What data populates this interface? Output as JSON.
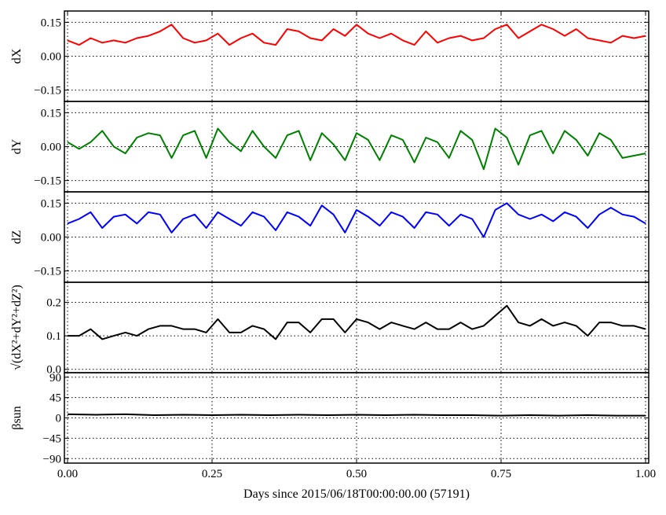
{
  "chart_data": {
    "type": "line",
    "x_axis": {
      "label": "Days since 2015/06/18T00:00:00.00 (57191)",
      "range": [
        0.0,
        1.0
      ],
      "ticks": [
        0.0,
        0.25,
        0.5,
        0.75,
        1.0
      ],
      "tick_labels": [
        "0.00",
        "0.25",
        "0.50",
        "0.75",
        "1.00"
      ]
    },
    "grid": true,
    "panels": [
      {
        "id": "dx",
        "ylabel": "dX",
        "color": "#ff0000",
        "ylim": [
          -0.2,
          0.2
        ],
        "yticks": [
          -0.15,
          0.0,
          0.15
        ],
        "ytick_labels": [
          "−0.15",
          "0.00",
          "0.15"
        ],
        "x": [
          0.0,
          0.02,
          0.04,
          0.06,
          0.08,
          0.1,
          0.12,
          0.14,
          0.16,
          0.18,
          0.2,
          0.22,
          0.24,
          0.26,
          0.28,
          0.3,
          0.32,
          0.34,
          0.36,
          0.38,
          0.4,
          0.42,
          0.44,
          0.46,
          0.48,
          0.5,
          0.52,
          0.54,
          0.56,
          0.58,
          0.6,
          0.62,
          0.64,
          0.66,
          0.68,
          0.7,
          0.72,
          0.74,
          0.76,
          0.78,
          0.8,
          0.82,
          0.84,
          0.86,
          0.88,
          0.9,
          0.92,
          0.94,
          0.96,
          0.98,
          1.0
        ],
        "y": [
          0.07,
          0.05,
          0.08,
          0.06,
          0.07,
          0.06,
          0.08,
          0.09,
          0.11,
          0.14,
          0.08,
          0.06,
          0.07,
          0.1,
          0.05,
          0.08,
          0.1,
          0.06,
          0.05,
          0.12,
          0.11,
          0.08,
          0.07,
          0.12,
          0.09,
          0.14,
          0.1,
          0.08,
          0.1,
          0.07,
          0.05,
          0.11,
          0.06,
          0.08,
          0.09,
          0.07,
          0.08,
          0.12,
          0.14,
          0.08,
          0.11,
          0.14,
          0.12,
          0.09,
          0.12,
          0.08,
          0.07,
          0.06,
          0.09,
          0.08,
          0.09
        ]
      },
      {
        "id": "dy",
        "ylabel": "dY",
        "color": "#008000",
        "ylim": [
          -0.2,
          0.2
        ],
        "yticks": [
          -0.15,
          0.0,
          0.15
        ],
        "ytick_labels": [
          "−0.15",
          "0.00",
          "0.15"
        ],
        "x": [
          0.0,
          0.02,
          0.04,
          0.06,
          0.08,
          0.1,
          0.12,
          0.14,
          0.16,
          0.18,
          0.2,
          0.22,
          0.24,
          0.26,
          0.28,
          0.3,
          0.32,
          0.34,
          0.36,
          0.38,
          0.4,
          0.42,
          0.44,
          0.46,
          0.48,
          0.5,
          0.52,
          0.54,
          0.56,
          0.58,
          0.6,
          0.62,
          0.64,
          0.66,
          0.68,
          0.7,
          0.72,
          0.74,
          0.76,
          0.78,
          0.8,
          0.82,
          0.84,
          0.86,
          0.88,
          0.9,
          0.92,
          0.94,
          0.96,
          0.98,
          1.0
        ],
        "y": [
          0.02,
          -0.01,
          0.02,
          0.07,
          0.0,
          -0.03,
          0.04,
          0.06,
          0.05,
          -0.05,
          0.05,
          0.07,
          -0.05,
          0.08,
          0.02,
          -0.02,
          0.07,
          0.0,
          -0.05,
          0.05,
          0.07,
          -0.06,
          0.06,
          0.01,
          -0.06,
          0.06,
          0.03,
          -0.06,
          0.05,
          0.03,
          -0.07,
          0.04,
          0.02,
          -0.05,
          0.07,
          0.03,
          -0.1,
          0.08,
          0.04,
          -0.08,
          0.05,
          0.07,
          -0.03,
          0.07,
          0.03,
          -0.04,
          0.06,
          0.03,
          -0.05,
          -0.04,
          -0.03
        ]
      },
      {
        "id": "dz",
        "ylabel": "dZ",
        "color": "#0000ff",
        "ylim": [
          -0.2,
          0.2
        ],
        "yticks": [
          -0.15,
          0.0,
          0.15
        ],
        "ytick_labels": [
          "−0.15",
          "0.00",
          "0.15"
        ],
        "x": [
          0.0,
          0.02,
          0.04,
          0.06,
          0.08,
          0.1,
          0.12,
          0.14,
          0.16,
          0.18,
          0.2,
          0.22,
          0.24,
          0.26,
          0.28,
          0.3,
          0.32,
          0.34,
          0.36,
          0.38,
          0.4,
          0.42,
          0.44,
          0.46,
          0.48,
          0.5,
          0.52,
          0.54,
          0.56,
          0.58,
          0.6,
          0.62,
          0.64,
          0.66,
          0.68,
          0.7,
          0.72,
          0.74,
          0.76,
          0.78,
          0.8,
          0.82,
          0.84,
          0.86,
          0.88,
          0.9,
          0.92,
          0.94,
          0.96,
          0.98,
          1.0
        ],
        "y": [
          0.06,
          0.08,
          0.11,
          0.04,
          0.09,
          0.1,
          0.06,
          0.11,
          0.1,
          0.02,
          0.08,
          0.1,
          0.04,
          0.11,
          0.08,
          0.05,
          0.11,
          0.09,
          0.03,
          0.11,
          0.09,
          0.05,
          0.14,
          0.1,
          0.02,
          0.12,
          0.09,
          0.05,
          0.11,
          0.09,
          0.04,
          0.11,
          0.1,
          0.05,
          0.1,
          0.08,
          0.0,
          0.12,
          0.15,
          0.1,
          0.08,
          0.1,
          0.07,
          0.11,
          0.09,
          0.04,
          0.1,
          0.13,
          0.1,
          0.09,
          0.06
        ]
      },
      {
        "id": "magnitude",
        "ylabel": "√(dX²+dY²+dZ²)",
        "color": "#000000",
        "ylim": [
          -0.01,
          0.26
        ],
        "yticks": [
          0.0,
          0.1,
          0.2
        ],
        "ytick_labels": [
          "0.0",
          "0.1",
          "0.2"
        ],
        "x": [
          0.0,
          0.02,
          0.04,
          0.06,
          0.08,
          0.1,
          0.12,
          0.14,
          0.16,
          0.18,
          0.2,
          0.22,
          0.24,
          0.26,
          0.28,
          0.3,
          0.32,
          0.34,
          0.36,
          0.38,
          0.4,
          0.42,
          0.44,
          0.46,
          0.48,
          0.5,
          0.52,
          0.54,
          0.56,
          0.58,
          0.6,
          0.62,
          0.64,
          0.66,
          0.68,
          0.7,
          0.72,
          0.74,
          0.76,
          0.78,
          0.8,
          0.82,
          0.84,
          0.86,
          0.88,
          0.9,
          0.92,
          0.94,
          0.96,
          0.98,
          1.0
        ],
        "y": [
          0.1,
          0.1,
          0.12,
          0.09,
          0.1,
          0.11,
          0.1,
          0.12,
          0.13,
          0.13,
          0.12,
          0.12,
          0.11,
          0.15,
          0.11,
          0.11,
          0.13,
          0.12,
          0.09,
          0.14,
          0.14,
          0.11,
          0.15,
          0.15,
          0.11,
          0.15,
          0.14,
          0.12,
          0.14,
          0.13,
          0.12,
          0.14,
          0.12,
          0.12,
          0.14,
          0.12,
          0.13,
          0.16,
          0.19,
          0.14,
          0.13,
          0.15,
          0.13,
          0.14,
          0.13,
          0.1,
          0.14,
          0.14,
          0.13,
          0.13,
          0.12
        ]
      },
      {
        "id": "beta-sun",
        "ylabel": "βsun",
        "color": "#000000",
        "ylim": [
          -100,
          100
        ],
        "yticks": [
          -90,
          -45,
          0,
          45,
          90
        ],
        "ytick_labels": [
          "−90",
          "−45",
          "0",
          "45",
          "90"
        ],
        "x": [
          0.0,
          0.05,
          0.1,
          0.15,
          0.2,
          0.25,
          0.3,
          0.35,
          0.4,
          0.45,
          0.5,
          0.55,
          0.6,
          0.65,
          0.7,
          0.75,
          0.8,
          0.85,
          0.9,
          0.95,
          1.0
        ],
        "y": [
          8,
          7,
          8,
          6,
          7,
          6,
          7,
          6,
          7,
          6,
          7,
          6,
          7,
          6,
          6,
          5,
          6,
          5,
          6,
          5,
          5
        ]
      }
    ]
  }
}
